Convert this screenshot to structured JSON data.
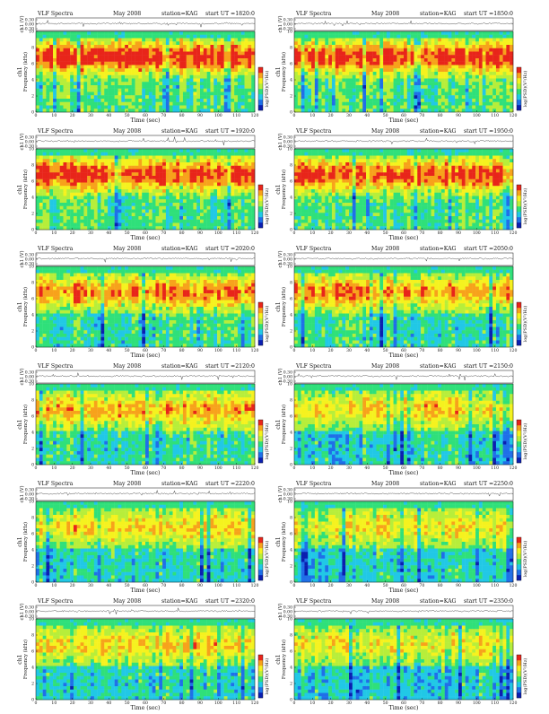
{
  "chart_data": [
    {
      "type": "heatmap",
      "title": "VLF Spectra",
      "date": "May 2008",
      "station": "station=KAG",
      "start_ut": "start UT =1820:0",
      "x": [
        0,
        10,
        20,
        30,
        40,
        50,
        60,
        70,
        80,
        90,
        100,
        110,
        120
      ],
      "y": [
        0,
        2,
        4,
        6,
        8,
        10
      ],
      "xlim": [
        0,
        120
      ],
      "ylim": [
        0,
        10
      ],
      "xlabel": "Time (sec)",
      "ylabel": "Frequency (kHz)",
      "channel_label": "ch1",
      "strip_label": "ch1 (V)",
      "strip_ticks": [
        "0.30",
        "0.00",
        "-0.30"
      ],
      "colorbar_label": "log(PSD)(V²/Hz)",
      "intensity": 0.9
    },
    {
      "type": "heatmap",
      "title": "VLF Spectra",
      "date": "May 2008",
      "station": "station=KAG",
      "start_ut": "start UT =1850:0",
      "x": [
        0,
        10,
        20,
        30,
        40,
        50,
        60,
        70,
        80,
        90,
        100,
        110,
        120
      ],
      "y": [
        0,
        2,
        4,
        6,
        8,
        10
      ],
      "xlim": [
        0,
        120
      ],
      "ylim": [
        0,
        10
      ],
      "xlabel": "Time (sec)",
      "ylabel": "Frequency (kHz)",
      "channel_label": "ch1",
      "strip_label": "ch1 (V)",
      "strip_ticks": [
        "0.30",
        "0.00",
        "-0.30"
      ],
      "colorbar_label": "log(PSD)(V²/Hz)",
      "intensity": 0.88
    },
    {
      "type": "heatmap",
      "title": "VLF Spectra",
      "date": "May 2008",
      "station": "station=KAG",
      "start_ut": "start UT =1920:0",
      "x": [
        0,
        10,
        20,
        30,
        40,
        50,
        60,
        70,
        80,
        90,
        100,
        110,
        120
      ],
      "y": [
        0,
        2,
        4,
        6,
        8,
        10
      ],
      "xlim": [
        0,
        120
      ],
      "ylim": [
        0,
        10
      ],
      "xlabel": "Time (sec)",
      "ylabel": "Frequency (kHz)",
      "channel_label": "ch1",
      "strip_label": "ch1 (V)",
      "strip_ticks": [
        "0.30",
        "0.00",
        "-0.30"
      ],
      "colorbar_label": "log(PSD)(V²/Hz)",
      "intensity": 0.85
    },
    {
      "type": "heatmap",
      "title": "VLF Spectra",
      "date": "May 2008",
      "station": "station=KAG",
      "start_ut": "start UT =1950:0",
      "x": [
        0,
        10,
        20,
        30,
        40,
        50,
        60,
        70,
        80,
        90,
        100,
        110,
        120
      ],
      "y": [
        0,
        2,
        4,
        6,
        8,
        10
      ],
      "xlim": [
        0,
        120
      ],
      "ylim": [
        0,
        10
      ],
      "xlabel": "Time (sec)",
      "ylabel": "Frequency (kHz)",
      "channel_label": "ch1",
      "strip_label": "ch1 (V)",
      "strip_ticks": [
        "0.30",
        "0.00",
        "-0.30"
      ],
      "colorbar_label": "log(PSD)(V²/Hz)",
      "intensity": 0.82
    },
    {
      "type": "heatmap",
      "title": "VLF Spectra",
      "date": "May 2008",
      "station": "station=KAG",
      "start_ut": "start UT =2020:0",
      "x": [
        0,
        10,
        20,
        30,
        40,
        50,
        60,
        70,
        80,
        90,
        100,
        110,
        120
      ],
      "y": [
        0,
        2,
        4,
        6,
        8,
        10
      ],
      "xlim": [
        0,
        120
      ],
      "ylim": [
        0,
        10
      ],
      "xlabel": "Time (sec)",
      "ylabel": "Frequency (kHz)",
      "channel_label": "ch1",
      "strip_label": "ch1 (V)",
      "strip_ticks": [
        "0.30",
        "0.00",
        "-0.30"
      ],
      "colorbar_label": "log(PSD)(V²/Hz)",
      "intensity": 0.72
    },
    {
      "type": "heatmap",
      "title": "VLF Spectra",
      "date": "May 2008",
      "station": "station=KAG",
      "start_ut": "start UT =2050:0",
      "x": [
        0,
        10,
        20,
        30,
        40,
        50,
        60,
        70,
        80,
        90,
        100,
        110,
        120
      ],
      "y": [
        0,
        2,
        4,
        6,
        8,
        10
      ],
      "xlim": [
        0,
        120
      ],
      "ylim": [
        0,
        10
      ],
      "xlabel": "Time (sec)",
      "ylabel": "Frequency (kHz)",
      "channel_label": "ch1",
      "strip_label": "ch1 (V)",
      "strip_ticks": [
        "0.30",
        "0.00",
        "-0.30"
      ],
      "colorbar_label": "log(PSD)(V²/Hz)",
      "intensity": 0.7
    },
    {
      "type": "heatmap",
      "title": "VLF Spectra",
      "date": "May 2008",
      "station": "station=KAG",
      "start_ut": "start UT =2120:0",
      "x": [
        0,
        10,
        20,
        30,
        40,
        50,
        60,
        70,
        80,
        90,
        100,
        110,
        120
      ],
      "y": [
        0,
        2,
        4,
        6,
        8,
        10
      ],
      "xlim": [
        0,
        120
      ],
      "ylim": [
        0,
        10
      ],
      "xlabel": "Time (sec)",
      "ylabel": "Frequency (kHz)",
      "channel_label": "ch1",
      "strip_label": "ch1 (V)",
      "strip_ticks": [
        "0.30",
        "0.00",
        "-0.30"
      ],
      "colorbar_label": "log(PSD)(V²/Hz)",
      "intensity": 0.62
    },
    {
      "type": "heatmap",
      "title": "VLF Spectra",
      "date": "May 2008",
      "station": "station=KAG",
      "start_ut": "start UT =2150:0",
      "x": [
        0,
        10,
        20,
        30,
        40,
        50,
        60,
        70,
        80,
        90,
        100,
        110,
        120
      ],
      "y": [
        0,
        2,
        4,
        6,
        8,
        10
      ],
      "xlim": [
        0,
        120
      ],
      "ylim": [
        0,
        10
      ],
      "xlabel": "Time (sec)",
      "ylabel": "Frequency (kHz)",
      "channel_label": "ch1",
      "strip_label": "ch1 (V)",
      "strip_ticks": [
        "0.30",
        "0.00",
        "-0.30"
      ],
      "colorbar_label": "log(PSD)(V²/Hz)",
      "intensity": 0.58
    },
    {
      "type": "heatmap",
      "title": "VLF Spectra",
      "date": "May 2008",
      "station": "station=KAG",
      "start_ut": "start UT =2220:0",
      "x": [
        0,
        10,
        20,
        30,
        40,
        50,
        60,
        70,
        80,
        90,
        100,
        110,
        120
      ],
      "y": [
        0,
        2,
        4,
        6,
        8,
        10
      ],
      "xlim": [
        0,
        120
      ],
      "ylim": [
        0,
        10
      ],
      "xlabel": "Time (sec)",
      "ylabel": "Frequency (kHz)",
      "channel_label": "ch1",
      "strip_label": "ch1 (V)",
      "strip_ticks": [
        "0.30",
        "0.00",
        "-0.30"
      ],
      "colorbar_label": "log(PSD)(V²/Hz)",
      "intensity": 0.56
    },
    {
      "type": "heatmap",
      "title": "VLF Spectra",
      "date": "May 2008",
      "station": "station=KAG",
      "start_ut": "start UT =2250:0",
      "x": [
        0,
        10,
        20,
        30,
        40,
        50,
        60,
        70,
        80,
        90,
        100,
        110,
        120
      ],
      "y": [
        0,
        2,
        4,
        6,
        8,
        10
      ],
      "xlim": [
        0,
        120
      ],
      "ylim": [
        0,
        10
      ],
      "xlabel": "Time (sec)",
      "ylabel": "Frequency (kHz)",
      "channel_label": "ch1",
      "strip_label": "ch1 (V)",
      "strip_ticks": [
        "0.30",
        "0.00",
        "-0.30"
      ],
      "colorbar_label": "log(PSD)(V²/Hz)",
      "intensity": 0.5
    },
    {
      "type": "heatmap",
      "title": "VLF Spectra",
      "date": "May 2008",
      "station": "station=KAG",
      "start_ut": "start UT =2320:0",
      "x": [
        0,
        10,
        20,
        30,
        40,
        50,
        60,
        70,
        80,
        90,
        100,
        110,
        120
      ],
      "y": [
        0,
        2,
        4,
        6,
        8,
        10
      ],
      "xlim": [
        0,
        120
      ],
      "ylim": [
        0,
        10
      ],
      "xlabel": "Time (sec)",
      "ylabel": "Frequency (kHz)",
      "channel_label": "ch1",
      "strip_label": "ch1 (V)",
      "strip_ticks": [
        "0.30",
        "0.00",
        "-0.30"
      ],
      "colorbar_label": "log(PSD)(V²/Hz)",
      "intensity": 0.55
    },
    {
      "type": "heatmap",
      "title": "VLF Spectra",
      "date": "May 2008",
      "station": "station=KAG",
      "start_ut": "start UT =2350:0",
      "x": [
        0,
        10,
        20,
        30,
        40,
        50,
        60,
        70,
        80,
        90,
        100,
        110,
        120
      ],
      "y": [
        0,
        2,
        4,
        6,
        8,
        10
      ],
      "xlim": [
        0,
        120
      ],
      "ylim": [
        0,
        10
      ],
      "xlabel": "Time (sec)",
      "ylabel": "Frequency (kHz)",
      "channel_label": "ch1",
      "strip_label": "ch1 (V)",
      "strip_ticks": [
        "0.30",
        "0.00",
        "-0.30"
      ],
      "colorbar_label": "log(PSD)(V²/Hz)",
      "intensity": 0.52
    }
  ],
  "colors": {
    "colormap": [
      "#0b1fb0",
      "#1f6fe8",
      "#21c8e6",
      "#2fe07a",
      "#b7ee3a",
      "#f5f21e",
      "#f7a21b",
      "#e8251a"
    ],
    "axis": "#111111",
    "background": "#ffffff"
  }
}
